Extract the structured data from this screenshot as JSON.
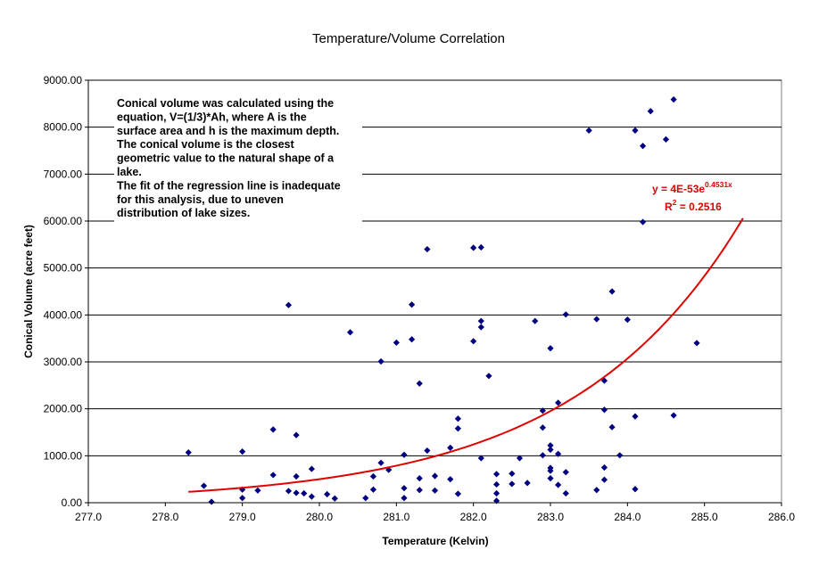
{
  "chart_data": {
    "type": "scatter",
    "title": "Temperature/Volume Correlation",
    "xlabel": "Temperature (Kelvin)",
    "ylabel": "Conical Volume (acre feet)",
    "xlim": [
      277.0,
      286.0
    ],
    "ylim": [
      0,
      9000
    ],
    "x_ticks": [
      "277.0",
      "278.0",
      "279.0",
      "280.0",
      "281.0",
      "282.0",
      "283.0",
      "284.0",
      "285.0",
      "286.0"
    ],
    "y_ticks": [
      "0.00",
      "1000.00",
      "2000.00",
      "3000.00",
      "4000.00",
      "5000.00",
      "6000.00",
      "7000.00",
      "8000.00",
      "9000.00"
    ],
    "grid": "horizontal",
    "colors": {
      "points": "#000080",
      "trendline": "#e00000",
      "grid": "#000000",
      "background": "#ffffff"
    },
    "annotation_lines": [
      "Conical volume was calculated using the",
      "equation, V=(1/3)*Ah, where A is the",
      "surface area and h is the maximum depth.",
      "The conical volume is the closest",
      "geometric value to the natural shape of a",
      "lake.",
      "The fit of the regression line is inadequate",
      "for this analysis, due to uneven",
      "distribution of lake sizes."
    ],
    "trendline": {
      "type": "exponential",
      "a": 4e-53,
      "b": 0.4531,
      "x_range": [
        278.3,
        285.5
      ],
      "equation_prefix": "y = 4E-53e",
      "equation_exponent": "0.4531x",
      "r2_prefix": "R",
      "r2_exponent": "2",
      "r2_suffix": " = 0.2516"
    },
    "series": [
      {
        "points": [
          [
            278.3,
            1070
          ],
          [
            278.5,
            360
          ],
          [
            278.6,
            20
          ],
          [
            279.0,
            1090
          ],
          [
            279.0,
            280
          ],
          [
            279.0,
            100
          ],
          [
            279.2,
            260
          ],
          [
            279.4,
            1560
          ],
          [
            279.4,
            590
          ],
          [
            279.6,
            4210
          ],
          [
            279.6,
            250
          ],
          [
            279.7,
            1440
          ],
          [
            279.7,
            560
          ],
          [
            279.7,
            210
          ],
          [
            279.8,
            200
          ],
          [
            279.9,
            720
          ],
          [
            279.9,
            130
          ],
          [
            280.1,
            180
          ],
          [
            280.2,
            90
          ],
          [
            280.4,
            3630
          ],
          [
            280.6,
            100
          ],
          [
            280.7,
            560
          ],
          [
            280.7,
            280
          ],
          [
            280.8,
            3010
          ],
          [
            280.8,
            850
          ],
          [
            280.9,
            700
          ],
          [
            281.0,
            3410
          ],
          [
            281.1,
            1020
          ],
          [
            281.1,
            310
          ],
          [
            281.1,
            100
          ],
          [
            281.2,
            4220
          ],
          [
            281.2,
            3480
          ],
          [
            281.3,
            2540
          ],
          [
            281.3,
            520
          ],
          [
            281.3,
            270
          ],
          [
            281.4,
            5400
          ],
          [
            281.4,
            1110
          ],
          [
            281.5,
            570
          ],
          [
            281.5,
            260
          ],
          [
            281.7,
            1170
          ],
          [
            281.7,
            500
          ],
          [
            281.8,
            1790
          ],
          [
            281.8,
            1580
          ],
          [
            281.8,
            190
          ],
          [
            282.0,
            5430
          ],
          [
            282.0,
            3440
          ],
          [
            282.1,
            5440
          ],
          [
            282.1,
            3870
          ],
          [
            282.1,
            3740
          ],
          [
            282.1,
            950
          ],
          [
            282.2,
            2700
          ],
          [
            282.3,
            610
          ],
          [
            282.3,
            390
          ],
          [
            282.3,
            200
          ],
          [
            282.3,
            40
          ],
          [
            282.5,
            620
          ],
          [
            282.5,
            400
          ],
          [
            282.6,
            950
          ],
          [
            282.7,
            420
          ],
          [
            282.8,
            3870
          ],
          [
            282.9,
            1960
          ],
          [
            282.9,
            1600
          ],
          [
            282.9,
            1010
          ],
          [
            283.0,
            3290
          ],
          [
            283.0,
            1220
          ],
          [
            283.0,
            1130
          ],
          [
            283.0,
            740
          ],
          [
            283.0,
            680
          ],
          [
            283.0,
            520
          ],
          [
            283.1,
            2130
          ],
          [
            283.1,
            1040
          ],
          [
            283.1,
            380
          ],
          [
            283.2,
            4010
          ],
          [
            283.2,
            650
          ],
          [
            283.2,
            200
          ],
          [
            283.5,
            7930
          ],
          [
            283.6,
            3910
          ],
          [
            283.6,
            270
          ],
          [
            283.7,
            2600
          ],
          [
            283.7,
            1980
          ],
          [
            283.7,
            750
          ],
          [
            283.7,
            490
          ],
          [
            283.8,
            4500
          ],
          [
            283.8,
            1610
          ],
          [
            283.9,
            1010
          ],
          [
            284.0,
            3900
          ],
          [
            284.1,
            7930
          ],
          [
            284.1,
            1840
          ],
          [
            284.1,
            290
          ],
          [
            284.2,
            7600
          ],
          [
            284.2,
            5980
          ],
          [
            284.3,
            8340
          ],
          [
            284.5,
            7740
          ],
          [
            284.6,
            8590
          ],
          [
            284.6,
            1860
          ],
          [
            284.9,
            3400
          ]
        ]
      }
    ]
  }
}
